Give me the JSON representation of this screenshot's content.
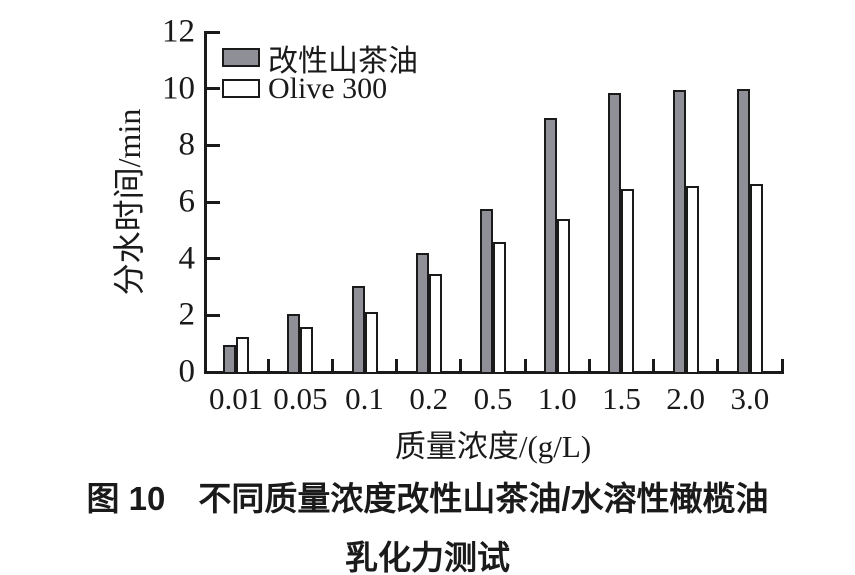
{
  "figure": {
    "legend": {
      "items": [
        {
          "label": "改性山茶油",
          "swatch": "filled-gray"
        },
        {
          "label": "Olive 300",
          "swatch": "open-white"
        }
      ]
    },
    "y_axis": {
      "label": "分水时间/min",
      "tick_labels": [
        "0",
        "2",
        "4",
        "6",
        "8",
        "10",
        "12"
      ]
    },
    "x_axis": {
      "label": "质量浓度/(g/L)",
      "tick_labels": [
        "0.01",
        "0.05",
        "0.1",
        "0.2",
        "0.5",
        "1.0",
        "1.5",
        "2.0",
        "3.0"
      ]
    },
    "caption": {
      "line1": "图 10　不同质量浓度改性山茶油/水溶性橄榄油",
      "line2": "乳化力测试"
    },
    "colors": {
      "bar_fill_gray": "#8f8f97",
      "bar_fill_white": "#ffffff",
      "line_black": "#1a1a1a"
    }
  },
  "chart_data": {
    "type": "bar",
    "title": "图10 不同质量浓度改性山茶油/水溶性橄榄油乳化力测试",
    "categories": [
      "0.01",
      "0.05",
      "0.1",
      "0.2",
      "0.5",
      "1.0",
      "1.5",
      "2.0",
      "3.0"
    ],
    "series": [
      {
        "name": "改性山茶油",
        "fill": "#8f8f97",
        "values": [
          0.95,
          2.05,
          3.05,
          4.2,
          5.75,
          8.95,
          9.85,
          9.95,
          10.0
        ]
      },
      {
        "name": "Olive 300",
        "fill": "#ffffff",
        "values": [
          1.25,
          1.6,
          2.1,
          3.45,
          4.6,
          5.4,
          6.45,
          6.55,
          6.65
        ]
      }
    ],
    "xlabel": "质量浓度/(g/L)",
    "ylabel": "分水时间/min",
    "ylim": [
      0,
      12
    ],
    "ytick_step": 2,
    "grid": false,
    "legend_position": "top-left"
  }
}
